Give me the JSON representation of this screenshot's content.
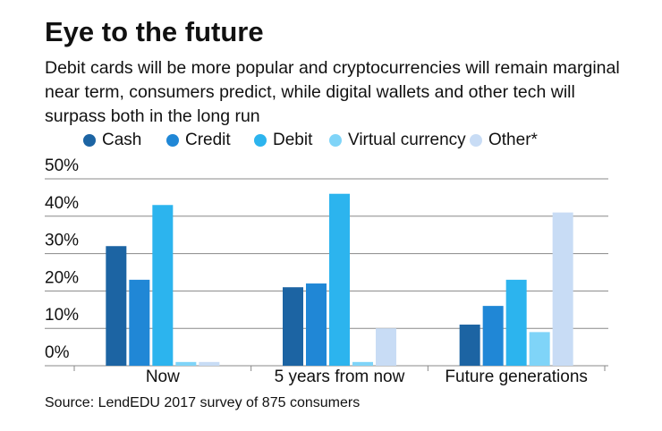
{
  "chart_data": {
    "type": "bar",
    "title": "Eye to the future",
    "subtitle": "Debit cards will be more popular and cryptocurrencies will remain marginal near term, consumers predict, while digital wallets and other tech will surpass both in the long run",
    "categories": [
      "Now",
      "5 years from now",
      "Future generations"
    ],
    "series": [
      {
        "name": "Cash",
        "color": "#1c64a3",
        "values": [
          32,
          21,
          11
        ]
      },
      {
        "name": "Credit",
        "color": "#2087d6",
        "values": [
          23,
          22,
          16
        ]
      },
      {
        "name": "Debit",
        "color": "#2cb4ee",
        "values": [
          43,
          46,
          23
        ]
      },
      {
        "name": "Virtual currency",
        "color": "#7fd4f8",
        "values": [
          1,
          1,
          9
        ]
      },
      {
        "name": "Other*",
        "color": "#c8dcf5",
        "values": [
          1,
          10,
          41
        ]
      }
    ],
    "ylim": [
      0,
      50
    ],
    "yticks": [
      {
        "value": 0,
        "label": "0%"
      },
      {
        "value": 10,
        "label": "10%"
      },
      {
        "value": 20,
        "label": "20%"
      },
      {
        "value": 30,
        "label": "30%"
      },
      {
        "value": 40,
        "label": "40%"
      },
      {
        "value": 50,
        "label": "50%"
      }
    ],
    "grid": true,
    "source": "Source: LendEDU 2017 survey of 875 consumers"
  }
}
